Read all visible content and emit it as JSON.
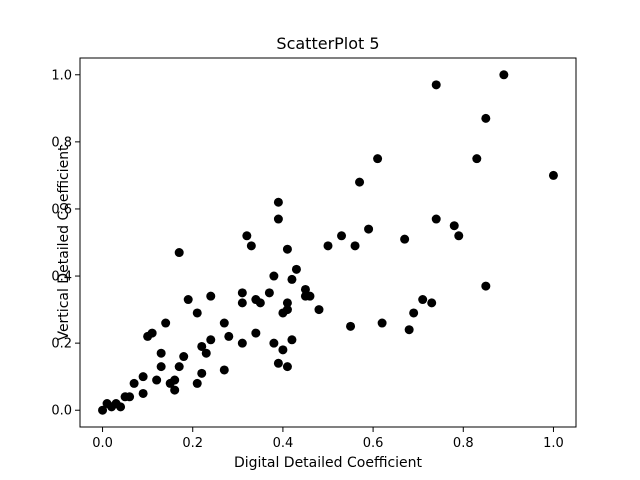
{
  "chart_data": {
    "type": "scatter",
    "title": "ScatterPlot 5",
    "xlabel": "Digital Detailed Coefficient",
    "ylabel": "Vertical Detailed Coefficient",
    "xlim": [
      -0.05,
      1.05
    ],
    "ylim": [
      -0.05,
      1.05
    ],
    "xticks": [
      "0.0",
      "0.2",
      "0.4",
      "0.6",
      "0.8",
      "1.0"
    ],
    "yticks": [
      "0.0",
      "0.2",
      "0.4",
      "0.6",
      "0.8",
      "1.0"
    ],
    "grid": false,
    "marker_color": "#000000",
    "points": [
      [
        0.0,
        0.0
      ],
      [
        0.01,
        0.02
      ],
      [
        0.02,
        0.01
      ],
      [
        0.03,
        0.02
      ],
      [
        0.04,
        0.01
      ],
      [
        0.05,
        0.04
      ],
      [
        0.06,
        0.04
      ],
      [
        0.07,
        0.08
      ],
      [
        0.09,
        0.05
      ],
      [
        0.09,
        0.1
      ],
      [
        0.1,
        0.22
      ],
      [
        0.11,
        0.23
      ],
      [
        0.12,
        0.09
      ],
      [
        0.13,
        0.13
      ],
      [
        0.13,
        0.17
      ],
      [
        0.14,
        0.26
      ],
      [
        0.15,
        0.08
      ],
      [
        0.16,
        0.06
      ],
      [
        0.16,
        0.09
      ],
      [
        0.17,
        0.13
      ],
      [
        0.17,
        0.47
      ],
      [
        0.18,
        0.16
      ],
      [
        0.19,
        0.33
      ],
      [
        0.21,
        0.08
      ],
      [
        0.21,
        0.29
      ],
      [
        0.22,
        0.19
      ],
      [
        0.22,
        0.11
      ],
      [
        0.23,
        0.17
      ],
      [
        0.24,
        0.21
      ],
      [
        0.24,
        0.34
      ],
      [
        0.27,
        0.12
      ],
      [
        0.27,
        0.26
      ],
      [
        0.28,
        0.22
      ],
      [
        0.31,
        0.2
      ],
      [
        0.31,
        0.32
      ],
      [
        0.31,
        0.35
      ],
      [
        0.32,
        0.52
      ],
      [
        0.33,
        0.49
      ],
      [
        0.34,
        0.23
      ],
      [
        0.34,
        0.33
      ],
      [
        0.35,
        0.32
      ],
      [
        0.37,
        0.35
      ],
      [
        0.38,
        0.4
      ],
      [
        0.38,
        0.2
      ],
      [
        0.39,
        0.57
      ],
      [
        0.39,
        0.62
      ],
      [
        0.39,
        0.14
      ],
      [
        0.4,
        0.18
      ],
      [
        0.4,
        0.29
      ],
      [
        0.41,
        0.13
      ],
      [
        0.41,
        0.3
      ],
      [
        0.41,
        0.48
      ],
      [
        0.41,
        0.32
      ],
      [
        0.42,
        0.21
      ],
      [
        0.42,
        0.39
      ],
      [
        0.43,
        0.42
      ],
      [
        0.45,
        0.34
      ],
      [
        0.45,
        0.36
      ],
      [
        0.46,
        0.34
      ],
      [
        0.48,
        0.3
      ],
      [
        0.5,
        0.49
      ],
      [
        0.53,
        0.52
      ],
      [
        0.55,
        0.25
      ],
      [
        0.56,
        0.49
      ],
      [
        0.57,
        0.68
      ],
      [
        0.59,
        0.54
      ],
      [
        0.61,
        0.75
      ],
      [
        0.62,
        0.26
      ],
      [
        0.67,
        0.51
      ],
      [
        0.68,
        0.24
      ],
      [
        0.69,
        0.29
      ],
      [
        0.71,
        0.33
      ],
      [
        0.73,
        0.32
      ],
      [
        0.74,
        0.57
      ],
      [
        0.74,
        0.97
      ],
      [
        0.78,
        0.55
      ],
      [
        0.79,
        0.52
      ],
      [
        0.83,
        0.75
      ],
      [
        0.85,
        0.37
      ],
      [
        0.85,
        0.87
      ],
      [
        0.89,
        1.0
      ],
      [
        1.0,
        0.7
      ]
    ]
  }
}
